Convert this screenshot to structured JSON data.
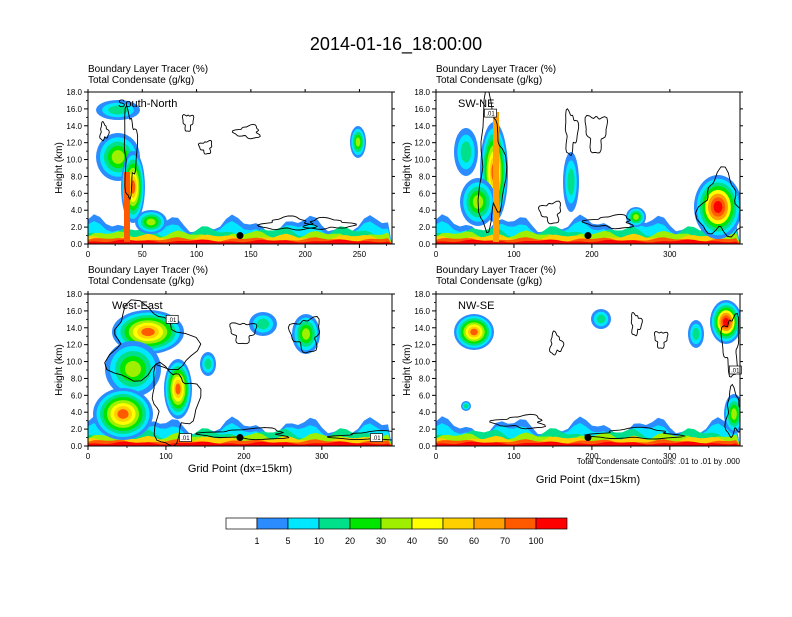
{
  "figure": {
    "title": "2014-01-16_18:00:00"
  },
  "chart_data": [
    {
      "type": "heatmap",
      "label": "South-North",
      "subtitle_lines": [
        "Boundary Layer Tracer   (%)",
        "Total Condensate   (g/kg)"
      ],
      "ylabel": "Height (km)",
      "xlabel": "",
      "xlim": [
        0,
        280
      ],
      "ylim": [
        0,
        18
      ],
      "xticks": [
        0,
        50,
        100,
        150,
        200,
        250
      ],
      "yticks": [
        0,
        2,
        4,
        6,
        8,
        10,
        12,
        14,
        16,
        18
      ],
      "marker": {
        "x": 140,
        "y": 1.0
      },
      "contour_labels": [],
      "caption": ""
    },
    {
      "type": "heatmap",
      "label": "SW-NE",
      "subtitle_lines": [
        "Boundary Layer Tracer   (%)",
        "Total Condensate   (g/kg)"
      ],
      "ylabel": "Height (km)",
      "xlabel": "",
      "xlim": [
        0,
        390
      ],
      "ylim": [
        0,
        18
      ],
      "xticks": [
        0,
        100,
        200,
        300
      ],
      "yticks": [
        0,
        2,
        4,
        6,
        8,
        10,
        12,
        14,
        16,
        18
      ],
      "marker": {
        "x": 195,
        "y": 1.0
      },
      "contour_labels": [
        {
          "text": ".01",
          "x": 70,
          "y": 15.5
        }
      ],
      "caption": ""
    },
    {
      "type": "heatmap",
      "label": "West-East",
      "subtitle_lines": [
        "Boundary Layer Tracer   (%)",
        "Total Condensate   (g/kg)"
      ],
      "ylabel": "Height (km)",
      "xlabel": "Grid Point (dx=15km)",
      "xlim": [
        0,
        390
      ],
      "ylim": [
        0,
        18
      ],
      "xticks": [
        0,
        100,
        200,
        300
      ],
      "yticks": [
        0,
        2,
        4,
        6,
        8,
        10,
        12,
        14,
        16,
        18
      ],
      "marker": {
        "x": 195,
        "y": 1.0
      },
      "contour_labels": [
        {
          "text": ".01",
          "x": 108,
          "y": 15.0
        },
        {
          "text": ".01",
          "x": 125,
          "y": 1.0
        },
        {
          "text": ".01",
          "x": 370,
          "y": 1.0
        }
      ],
      "caption": ""
    },
    {
      "type": "heatmap",
      "label": "NW-SE",
      "subtitle_lines": [
        "Boundary Layer Tracer   (%)",
        "Total Condensate   (g/kg)"
      ],
      "ylabel": "Height (km)",
      "xlabel": "Grid Point (dx=15km)",
      "xlim": [
        0,
        390
      ],
      "ylim": [
        0,
        18
      ],
      "xticks": [
        0,
        100,
        200,
        300
      ],
      "yticks": [
        0,
        2,
        4,
        6,
        8,
        10,
        12,
        14,
        16,
        18
      ],
      "marker": {
        "x": 195,
        "y": 1.0
      },
      "contour_labels": [
        {
          "text": ".01",
          "x": 384,
          "y": 9.0
        }
      ],
      "caption": "Total Condensate Contours: .01 to .01 by .000"
    }
  ],
  "colorbar": {
    "levels": [
      1,
      5,
      10,
      20,
      30,
      40,
      50,
      60,
      70,
      100
    ],
    "colors": [
      "#ffffff",
      "#2b8cff",
      "#00e8ff",
      "#00e08a",
      "#00e600",
      "#9ef000",
      "#ffff00",
      "#ffd000",
      "#ffa000",
      "#ff5a00",
      "#ff0000"
    ]
  }
}
